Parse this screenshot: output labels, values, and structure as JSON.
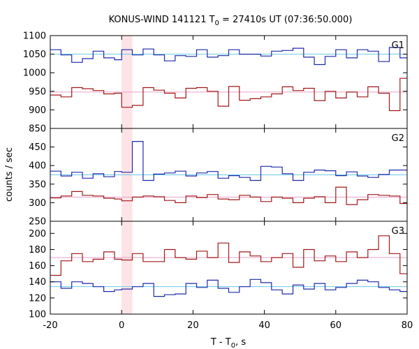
{
  "chart_data": {
    "type": "line",
    "title": "KONUS-WIND 141121 T",
    "title_sub": "0",
    "title_rest": " = 27410s UT (07:36:50.000)",
    "xlabel": "T - T",
    "xlabel_sub": "0",
    "xlabel_rest": ", s",
    "ylabel": "counts / sec",
    "xlim": [
      -20,
      80
    ],
    "x_ticks": [
      "-20",
      "0",
      "20",
      "40",
      "60",
      "80"
    ],
    "x_tick_values": [
      -20,
      0,
      20,
      40,
      60,
      80
    ],
    "highlight_interval": [
      0,
      3
    ],
    "highlight_color": "#fde3e6",
    "bin_edges": [
      -20,
      -17,
      -14,
      -11,
      -8,
      -5,
      -2,
      0,
      3,
      6,
      9,
      12,
      15,
      18,
      21,
      24,
      27,
      30,
      33,
      36,
      39,
      42,
      45,
      48,
      51,
      54,
      57,
      60,
      63,
      66,
      69,
      72,
      75,
      78,
      80
    ],
    "panels": [
      {
        "label": "G1",
        "ylim": [
          850,
          1100
        ],
        "y_ticks": [
          "850",
          "900",
          "950",
          "1000",
          "1050",
          "1100"
        ],
        "y_tick_values": [
          850,
          900,
          950,
          1000,
          1050,
          1100
        ],
        "series": [
          {
            "color": "#1f2aaa",
            "fit_color": "#6ec8e8",
            "fit_level": 1050,
            "values": [
              1062,
              1048,
              1028,
              1038,
              1058,
              1040,
              1035,
              1062,
              1048,
              1064,
              1048,
              1032,
              1046,
              1044,
              1062,
              1042,
              1046,
              1062,
              1050,
              1050,
              1045,
              1058,
              1060,
              1066,
              1042,
              1022,
              1044,
              1062,
              1040,
              1062,
              1058,
              1030,
              1068,
              1040
            ]
          },
          {
            "color": "#a01818",
            "fit_color": "#e8a0c8",
            "fit_level": 948,
            "values": [
              940,
              935,
              960,
              957,
              952,
              943,
              945,
              907,
              912,
              960,
              953,
              945,
              932,
              958,
              960,
              950,
              910,
              963,
              926,
              930,
              935,
              943,
              962,
              952,
              958,
              925,
              950,
              932,
              948,
              935,
              962,
              945,
              898,
              985
            ]
          }
        ]
      },
      {
        "label": "G2",
        "ylim": [
          250,
          500
        ],
        "y_ticks": [
          "250",
          "300",
          "350",
          "400",
          "450"
        ],
        "y_tick_values": [
          250,
          300,
          350,
          400,
          450
        ],
        "series": [
          {
            "color": "#1f2aaa",
            "fit_color": "#6ec8e8",
            "fit_level": 375,
            "values": [
              385,
              372,
              382,
              366,
              378,
              370,
              384,
              382,
              465,
              360,
              377,
              380,
              385,
              372,
              380,
              384,
              366,
              373,
              368,
              360,
              398,
              396,
              378,
              360,
              382,
              388,
              386,
              373,
              383,
              372,
              368,
              376,
              388,
              388
            ]
          },
          {
            "color": "#a01818",
            "fit_color": "#e8a0c8",
            "fit_level": 315,
            "values": [
              313,
              318,
              330,
              320,
              318,
              312,
              310,
              305,
              315,
              318,
              316,
              306,
              300,
              318,
              314,
              322,
              310,
              308,
              320,
              315,
              303,
              315,
              312,
              300,
              312,
              316,
              300,
              342,
              295,
              308,
              322,
              320,
              318,
              298
            ]
          }
        ]
      },
      {
        "label": "G3",
        "ylim": [
          100,
          215
        ],
        "y_ticks": [
          "100",
          "120",
          "140",
          "160",
          "180",
          "200"
        ],
        "y_tick_values": [
          100,
          120,
          140,
          160,
          180,
          200
        ],
        "series": [
          {
            "color": "#a01818",
            "fit_color": "#e8a0c8",
            "fit_level": 170,
            "values": [
              148,
              166,
              175,
              165,
              168,
              177,
              168,
              167,
              175,
              165,
              165,
              180,
              170,
              168,
              178,
              170,
              188,
              164,
              177,
              172,
              165,
              170,
              175,
              158,
              180,
              166,
              172,
              165,
              177,
              170,
              180,
              197,
              175,
              150
            ]
          },
          {
            "color": "#1f2aaa",
            "fit_color": "#6ec8e8",
            "fit_level": 134,
            "values": [
              140,
              132,
              140,
              138,
              134,
              128,
              130,
              131,
              134,
              138,
              122,
              124,
              125,
              138,
              133,
              142,
              132,
              127,
              134,
              143,
              139,
              130,
              125,
              136,
              131,
              138,
              130,
              133,
              138,
              142,
              140,
              133,
              130,
              128
            ]
          }
        ]
      }
    ]
  }
}
